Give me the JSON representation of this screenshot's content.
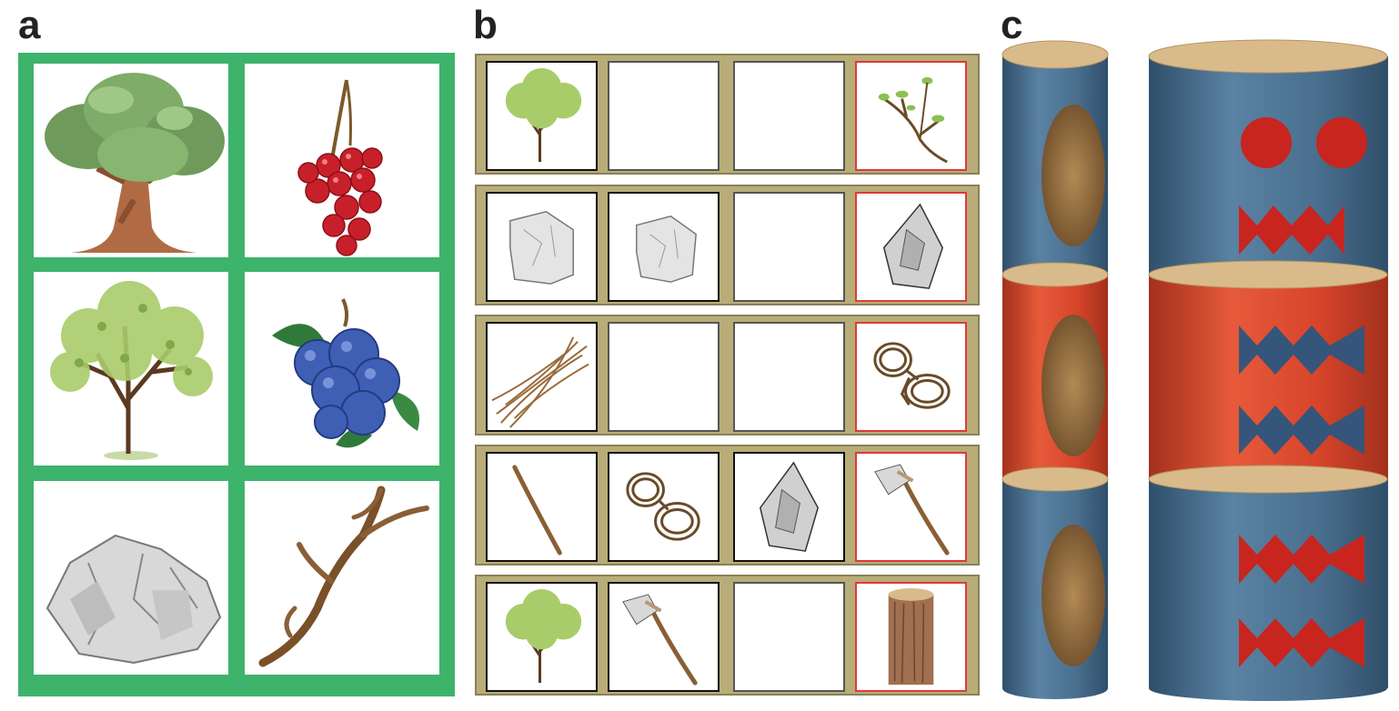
{
  "labels": {
    "panel_a": "a",
    "panel_b": "b",
    "panel_c": "c"
  },
  "panel_a": {
    "frame_color": "#3db36b",
    "items": [
      "oak-tree",
      "red-currants",
      "green-tree",
      "blueberries",
      "stone",
      "antler"
    ]
  },
  "panel_b": {
    "rows": [
      {
        "inputs": [
          "green-tree",
          "empty",
          "empty"
        ],
        "result": "twig"
      },
      {
        "inputs": [
          "stone",
          "stone",
          "empty"
        ],
        "result": "sharp-stone"
      },
      {
        "inputs": [
          "fibres",
          "empty",
          "empty"
        ],
        "result": "rope"
      },
      {
        "inputs": [
          "stick",
          "rope",
          "sharp-stone"
        ],
        "result": "axe"
      },
      {
        "inputs": [
          "green-tree",
          "axe",
          "empty"
        ],
        "result": "log"
      }
    ],
    "target_border_color": "#e0393b",
    "row_color": "#b8ad78"
  },
  "panel_c": {
    "colors": {
      "blue": "#4a6f8f",
      "red": "#d8452b",
      "wood_top": "#d9bb8b"
    },
    "narrow_stack": [
      "blue",
      "red",
      "blue"
    ],
    "wide_stack": [
      "blue",
      "red",
      "blue"
    ]
  }
}
